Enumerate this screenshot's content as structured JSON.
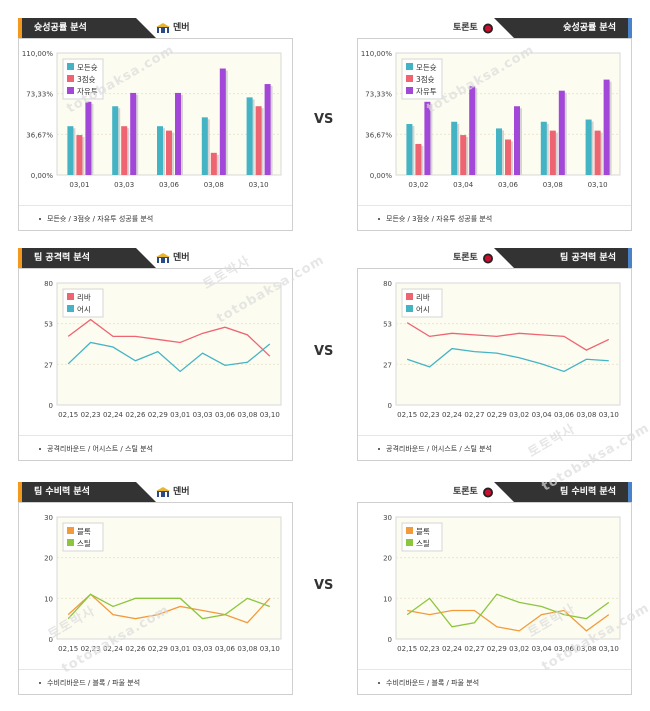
{
  "vs_label": "VS",
  "watermarks": [
    "토토박사",
    "totobaksa.com"
  ],
  "teams": {
    "left": "덴버",
    "right": "토론토"
  },
  "colors": {
    "orange": "#f39a1e",
    "blue": "#4a82c8",
    "panel_header": "#333333",
    "plot_bg": "#fdfcf1"
  },
  "sections": [
    {
      "title": "슛성공률 분석",
      "footer": "모든슛 / 3점슛 / 자유투 성공률 분석"
    },
    {
      "title": "팀 공격력 분석",
      "footer": "공격리바운드 / 어시스트 / 스틸 분석"
    },
    {
      "title": "팀 수비력 분석",
      "footer": "수비리바운드 / 블록 / 파울 분석"
    }
  ],
  "chart_data": [
    {
      "type": "bar",
      "panel": "shooting-left",
      "categories": [
        "03,01",
        "03,03",
        "03,06",
        "03,08",
        "03,10"
      ],
      "ylim": [
        0,
        110
      ],
      "yticks": [
        "110,00%",
        "73,33%",
        "36,67%",
        "0,00%"
      ],
      "series": [
        {
          "name": "모든슛",
          "color": "#44b4c4",
          "values": [
            44,
            62,
            44,
            52,
            70
          ]
        },
        {
          "name": "3점슛",
          "color": "#ee6470",
          "values": [
            36,
            44,
            40,
            20,
            62
          ]
        },
        {
          "name": "자유투",
          "color": "#a347d8",
          "values": [
            66,
            74,
            74,
            96,
            82
          ]
        }
      ]
    },
    {
      "type": "bar",
      "panel": "shooting-right",
      "categories": [
        "03,02",
        "03,04",
        "03,06",
        "03,08",
        "03,10"
      ],
      "ylim": [
        0,
        110
      ],
      "yticks": [
        "110,00%",
        "73,33%",
        "36,67%",
        "0,00%"
      ],
      "series": [
        {
          "name": "모든슛",
          "color": "#44b4c4",
          "values": [
            46,
            48,
            42,
            48,
            50
          ]
        },
        {
          "name": "3점슛",
          "color": "#ee6470",
          "values": [
            28,
            36,
            32,
            40,
            40
          ]
        },
        {
          "name": "자유투",
          "color": "#a347d8",
          "values": [
            66,
            80,
            62,
            76,
            86
          ]
        }
      ]
    },
    {
      "type": "line",
      "panel": "offense-left",
      "categories": [
        "02,15",
        "02,23",
        "02,24",
        "02,26",
        "02,29",
        "03,01",
        "03,03",
        "03,06",
        "03,08",
        "03,10"
      ],
      "ylim": [
        0,
        80
      ],
      "yticks": [
        80,
        53,
        27,
        0
      ],
      "series": [
        {
          "name": "리바",
          "color": "#ee6470",
          "values": [
            45,
            56,
            45,
            45,
            43,
            41,
            47,
            51,
            46,
            32
          ]
        },
        {
          "name": "어시",
          "color": "#44b4c4",
          "values": [
            27,
            41,
            38,
            29,
            35,
            22,
            34,
            26,
            28,
            40
          ]
        }
      ]
    },
    {
      "type": "line",
      "panel": "offense-right",
      "categories": [
        "02,15",
        "02,23",
        "02,24",
        "02,27",
        "02,29",
        "03,02",
        "03,04",
        "03,06",
        "03,08",
        "03,10"
      ],
      "ylim": [
        0,
        80
      ],
      "yticks": [
        80,
        53,
        27,
        0
      ],
      "series": [
        {
          "name": "리바",
          "color": "#ee6470",
          "values": [
            54,
            45,
            47,
            46,
            45,
            47,
            46,
            45,
            36,
            43
          ]
        },
        {
          "name": "어시",
          "color": "#44b4c4",
          "values": [
            30,
            25,
            37,
            35,
            34,
            31,
            27,
            22,
            30,
            29
          ]
        }
      ]
    },
    {
      "type": "line",
      "panel": "defense-left",
      "categories": [
        "02,15",
        "02,23",
        "02,24",
        "02,26",
        "02,29",
        "03,01",
        "03,03",
        "03,06",
        "03,08",
        "03,10"
      ],
      "ylim": [
        0,
        30
      ],
      "yticks": [
        30,
        20,
        10,
        0
      ],
      "series": [
        {
          "name": "블록",
          "color": "#f39a3c",
          "values": [
            6,
            11,
            6,
            5,
            6,
            8,
            7,
            6,
            4,
            10
          ]
        },
        {
          "name": "스틸",
          "color": "#8cc63e",
          "values": [
            5,
            11,
            8,
            10,
            10,
            10,
            5,
            6,
            10,
            8
          ]
        }
      ]
    },
    {
      "type": "line",
      "panel": "defense-right",
      "categories": [
        "02,15",
        "02,23",
        "02,24",
        "02,27",
        "02,29",
        "03,02",
        "03,04",
        "03,06",
        "03,08",
        "03,10"
      ],
      "ylim": [
        0,
        30
      ],
      "yticks": [
        30,
        20,
        10,
        0
      ],
      "series": [
        {
          "name": "블록",
          "color": "#f39a3c",
          "values": [
            7,
            6,
            7,
            7,
            3,
            2,
            6,
            7,
            2,
            6
          ]
        },
        {
          "name": "스틸",
          "color": "#8cc63e",
          "values": [
            6,
            10,
            3,
            4,
            11,
            9,
            8,
            6,
            5,
            9
          ]
        }
      ]
    }
  ]
}
